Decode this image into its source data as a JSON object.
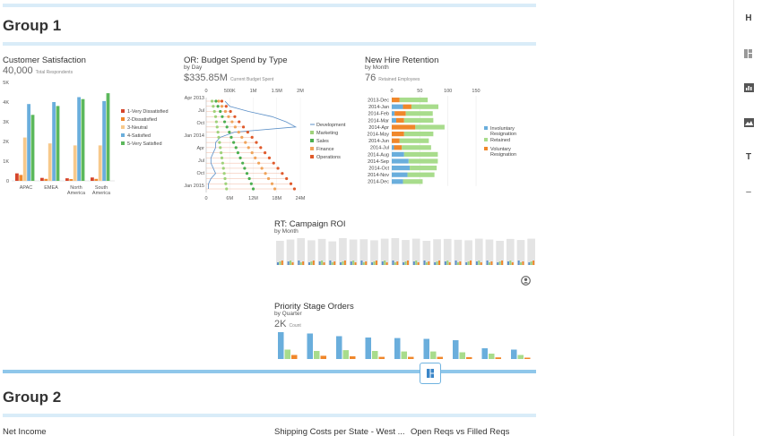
{
  "groups": [
    {
      "title": "Group 1"
    },
    {
      "title": "Group 2"
    }
  ],
  "cust": {
    "title": "Customer Satisfaction",
    "kpi_value": "40,000",
    "kpi_label": "Total Respondents",
    "chart_data": {
      "type": "bar",
      "categories": [
        "APAC",
        "EMEA",
        "North America",
        "South America"
      ],
      "category_labels": [
        [
          "APAC"
        ],
        [
          "EMEA"
        ],
        [
          "North",
          "America"
        ],
        [
          "South",
          "America"
        ]
      ],
      "yticks": [
        "0",
        "1K",
        "2K",
        "3K",
        "4K",
        "5K"
      ],
      "ylim": [
        0,
        5000
      ],
      "series": [
        {
          "name": "1-Very Dissatisfied",
          "color": "#d6452b",
          "values": [
            380,
            150,
            130,
            170
          ]
        },
        {
          "name": "2-Dissatisfied",
          "color": "#f0872b",
          "values": [
            300,
            100,
            90,
            100
          ]
        },
        {
          "name": "3-Neutral",
          "color": "#f7c98b",
          "values": [
            2200,
            1900,
            1800,
            1800
          ]
        },
        {
          "name": "4-Satisfied",
          "color": "#6aaedc",
          "values": [
            3900,
            4000,
            4250,
            4050
          ]
        },
        {
          "name": "5-Very Satisfied",
          "color": "#5cb85c",
          "values": [
            3350,
            3800,
            4150,
            4450
          ]
        }
      ]
    }
  },
  "budget": {
    "title": "OR: Budget Spend by Type",
    "subtitle": "by Day",
    "kpi_value": "$335.85M",
    "kpi_label": "Current Budget Spent",
    "chart_data": {
      "type": "line",
      "top_ticks": [
        "0",
        "500K",
        "1M",
        "1.5M",
        "2M"
      ],
      "bottom_ticks": [
        "0",
        "6M",
        "12M",
        "18M",
        "24M"
      ],
      "y_ticks": [
        "Apr 2013",
        "Jul",
        "Oct",
        "Jan 2014",
        "Apr",
        "Jul",
        "Oct",
        "Jan 2015"
      ],
      "series": [
        {
          "name": "Development",
          "color": "#5b8fc7",
          "values": [
            0.4,
            0.5,
            0.9,
            1.4,
            1.7,
            1.9,
            0.6,
            0.3,
            0.2,
            0.2,
            0.15,
            0.1,
            0.1,
            0.15,
            0.2,
            0.1,
            0.05,
            0.05
          ]
        },
        {
          "name": "Marketing",
          "color": "#9fd27a",
          "values": [
            1.5,
            1.8,
            2.1,
            2.4,
            2.6,
            2.8,
            3.0,
            3.2,
            3.4,
            3.6,
            3.8,
            4.0,
            4.2,
            4.4,
            4.6,
            4.8,
            5.0,
            5.2
          ]
        },
        {
          "name": "Sales",
          "color": "#4caf50",
          "values": [
            2.5,
            3.0,
            3.6,
            4.1,
            4.7,
            5.3,
            5.9,
            6.4,
            7.0,
            7.6,
            8.1,
            8.7,
            9.3,
            9.8,
            10.4,
            11.0,
            11.5,
            12.0
          ]
        },
        {
          "name": "Finance",
          "color": "#f0a35a",
          "values": [
            3.2,
            4.0,
            4.9,
            5.7,
            6.6,
            7.4,
            8.3,
            9.1,
            10.0,
            10.8,
            11.7,
            12.5,
            13.4,
            14.2,
            15.1,
            15.9,
            16.8,
            17.5
          ]
        },
        {
          "name": "Operations",
          "color": "#e05a2b",
          "values": [
            4.0,
            5.1,
            6.2,
            7.3,
            8.4,
            9.5,
            10.6,
            11.7,
            12.8,
            13.9,
            15.0,
            16.1,
            17.2,
            18.3,
            19.4,
            20.5,
            21.6,
            22.5
          ]
        }
      ]
    }
  },
  "retention": {
    "title": "New Hire Retention",
    "subtitle": "by Month",
    "kpi_value": "76",
    "kpi_label": "Retained Employees",
    "chart_data": {
      "type": "bar",
      "orientation": "horizontal",
      "stacked": true,
      "categories": [
        "2013-Dec",
        "2014-Jan",
        "2014-Feb",
        "2014-Mar",
        "2014-Apr",
        "2014-May",
        "2014-Jun",
        "2014-Jul",
        "2014-Aug",
        "2014-Sep",
        "2014-Oct",
        "2014-Nov",
        "2014-Dec"
      ],
      "xticks": [
        "0",
        "50",
        "100",
        "150"
      ],
      "xlim": [
        0,
        150
      ],
      "series": [
        {
          "name": "Involuntary Resignation",
          "color": "#6aaedc",
          "values": [
            0,
            20,
            5,
            8,
            0,
            0,
            0,
            4,
            22,
            30,
            32,
            28,
            20
          ]
        },
        {
          "name": "Retained",
          "color": "#a8dc8c",
          "values": [
            50,
            48,
            48,
            52,
            52,
            52,
            52,
            52,
            60,
            52,
            48,
            48,
            35
          ]
        },
        {
          "name": "Voluntary Resignation",
          "color": "#f0872b",
          "values": [
            14,
            15,
            20,
            14,
            42,
            22,
            14,
            14,
            0,
            0,
            0,
            0,
            0
          ]
        }
      ],
      "legend": [
        "Involuntary Resignation",
        "Retained",
        "Voluntary Resignation"
      ]
    }
  },
  "campaign": {
    "title": "RT: Campaign ROI",
    "subtitle": "by Month",
    "chart_data": {
      "type": "bar",
      "months": 25,
      "background": [
        0.9,
        0.95,
        1.0,
        0.92,
        0.97,
        0.88,
        1.0,
        0.95,
        0.96,
        0.92,
        0.98,
        1.0,
        0.93,
        0.98,
        0.9,
        0.96,
        0.97,
        0.94,
        0.92,
        0.98,
        0.95,
        0.9,
        0.97,
        0.93,
        0.98
      ],
      "series_colors": [
        "#5b8fc7",
        "#9fd27a",
        "#f0872b"
      ]
    }
  },
  "priority": {
    "title": "Priority Stage Orders",
    "subtitle": "by Quarter",
    "kpi_value": "2K",
    "kpi_label": "Count",
    "chart_data": {
      "type": "bar",
      "series": [
        {
          "name": "blue",
          "color": "#6aaedc",
          "values": [
            100,
            95,
            85,
            80,
            78,
            75,
            70,
            40,
            35
          ]
        },
        {
          "name": "green",
          "color": "#a8dc8c",
          "values": [
            35,
            30,
            33,
            30,
            28,
            28,
            25,
            20,
            15
          ]
        },
        {
          "name": "orange",
          "color": "#f0872b",
          "values": [
            15,
            12,
            10,
            8,
            8,
            8,
            7,
            6,
            5
          ]
        }
      ]
    }
  },
  "group2_tiles": [
    "Net Income",
    "Shipping Costs per State - West ...",
    "Open Reqs vs Filled Reqs"
  ],
  "toolbar": {
    "h_label": "H",
    "t_label": "T",
    "dash_label": "–"
  }
}
